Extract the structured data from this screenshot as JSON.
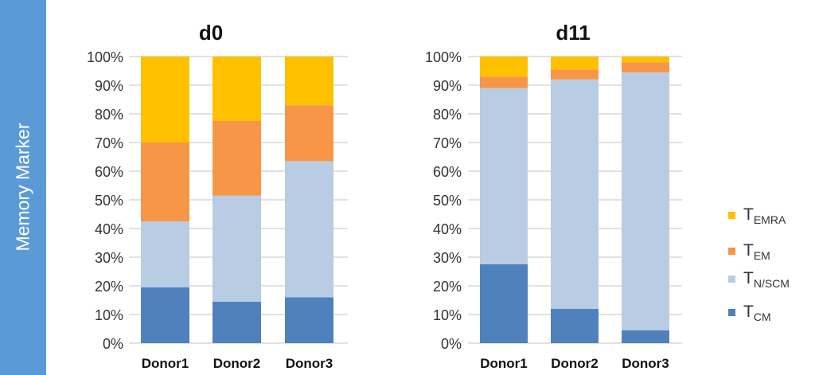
{
  "side_label": "Memory Marker",
  "legend": [
    {
      "main": "T",
      "sub": "EMRA",
      "color": "#ffc000"
    },
    {
      "main": "T",
      "sub": "EM",
      "color": "#f79646"
    },
    {
      "main": "T",
      "sub": "N/SCM",
      "color": "#b8cce4"
    },
    {
      "main": "T",
      "sub": "CM",
      "color": "#4f81bd"
    }
  ],
  "chart_data": [
    {
      "type": "bar",
      "stacked": true,
      "title": "d0",
      "categories": [
        "Donor1",
        "Donor2",
        "Donor3"
      ],
      "ylim": [
        0,
        100
      ],
      "yticks": [
        "0%",
        "10%",
        "20%",
        "30%",
        "40%",
        "50%",
        "60%",
        "70%",
        "80%",
        "90%",
        "100%"
      ],
      "grid": true,
      "legend_position": "right",
      "series": [
        {
          "name": "TCM",
          "values": [
            19.5,
            14.5,
            16
          ]
        },
        {
          "name": "TN/SCM",
          "values": [
            23,
            37,
            47.5
          ]
        },
        {
          "name": "TEM",
          "values": [
            27.5,
            26,
            19.5
          ]
        },
        {
          "name": "TEMRA",
          "values": [
            30,
            22.5,
            17
          ]
        }
      ]
    },
    {
      "type": "bar",
      "stacked": true,
      "title": "d11",
      "categories": [
        "Donor1",
        "Donor2",
        "Donor3"
      ],
      "ylim": [
        0,
        100
      ],
      "yticks": [
        "0%",
        "10%",
        "20%",
        "30%",
        "40%",
        "50%",
        "60%",
        "70%",
        "80%",
        "90%",
        "100%"
      ],
      "grid": true,
      "legend_position": "right",
      "series": [
        {
          "name": "TCM",
          "values": [
            27.5,
            12,
            4.5
          ]
        },
        {
          "name": "TN/SCM",
          "values": [
            61.5,
            80,
            90
          ]
        },
        {
          "name": "TEM",
          "values": [
            4,
            3.5,
            3.5
          ]
        },
        {
          "name": "TEMRA",
          "values": [
            7,
            4.5,
            2
          ]
        }
      ]
    }
  ]
}
